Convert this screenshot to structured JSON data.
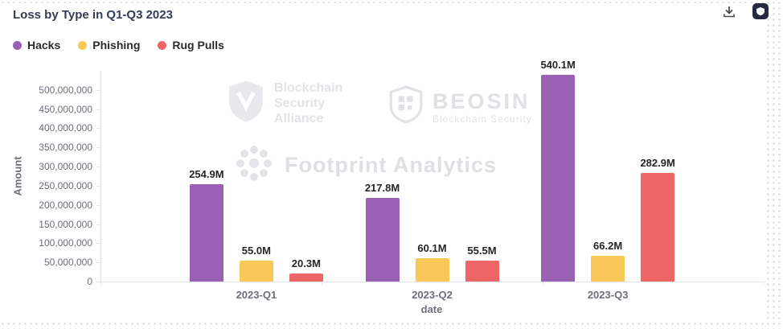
{
  "title": "Loss by Type in Q1-Q3 2023",
  "toolbar": {
    "download_icon": "download-icon",
    "badge_icon": "brand-badge-icon"
  },
  "legend": {
    "items": [
      {
        "label": "Hacks",
        "color": "#9a60b4"
      },
      {
        "label": "Phishing",
        "color": "#fac858"
      },
      {
        "label": "Rug Pulls",
        "color": "#ee6666"
      }
    ]
  },
  "chart_data": {
    "type": "bar",
    "title": "Loss by Type in Q1-Q3 2023",
    "categories": [
      "2023-Q1",
      "2023-Q2",
      "2023-Q3"
    ],
    "series": [
      {
        "name": "Hacks",
        "color": "#9a60b4",
        "values": [
          254900000,
          217800000,
          540100000
        ],
        "data_labels": [
          "254.9M",
          "217.8M",
          "540.1M"
        ]
      },
      {
        "name": "Phishing",
        "color": "#fac858",
        "values": [
          55000000,
          60100000,
          66200000
        ],
        "data_labels": [
          "55.0M",
          "60.1M",
          "66.2M"
        ]
      },
      {
        "name": "Rug Pulls",
        "color": "#ee6666",
        "values": [
          20300000,
          55500000,
          282900000
        ],
        "data_labels": [
          "20.3M",
          "55.5M",
          "282.9M"
        ]
      }
    ],
    "xlabel": "date",
    "ylabel": "Amount",
    "ylim": [
      0,
      550000000
    ],
    "yticks": [
      0,
      50000000,
      100000000,
      150000000,
      200000000,
      250000000,
      300000000,
      350000000,
      400000000,
      450000000,
      500000000
    ],
    "ytick_labels": [
      "0",
      "50,000,000",
      "100,000,000",
      "150,000,000",
      "200,000,000",
      "250,000,000",
      "300,000,000",
      "350,000,000",
      "400,000,000",
      "450,000,000",
      "500,000,000"
    ],
    "grid": false,
    "legend_position": "top-left"
  },
  "watermarks": {
    "alliance": {
      "lines": [
        "Blockchain",
        "Security",
        "Alliance"
      ]
    },
    "beosin": {
      "name": "BEOSIN",
      "tagline": "Blockchain Security"
    },
    "footprint": {
      "name": "Footprint Analytics"
    }
  }
}
